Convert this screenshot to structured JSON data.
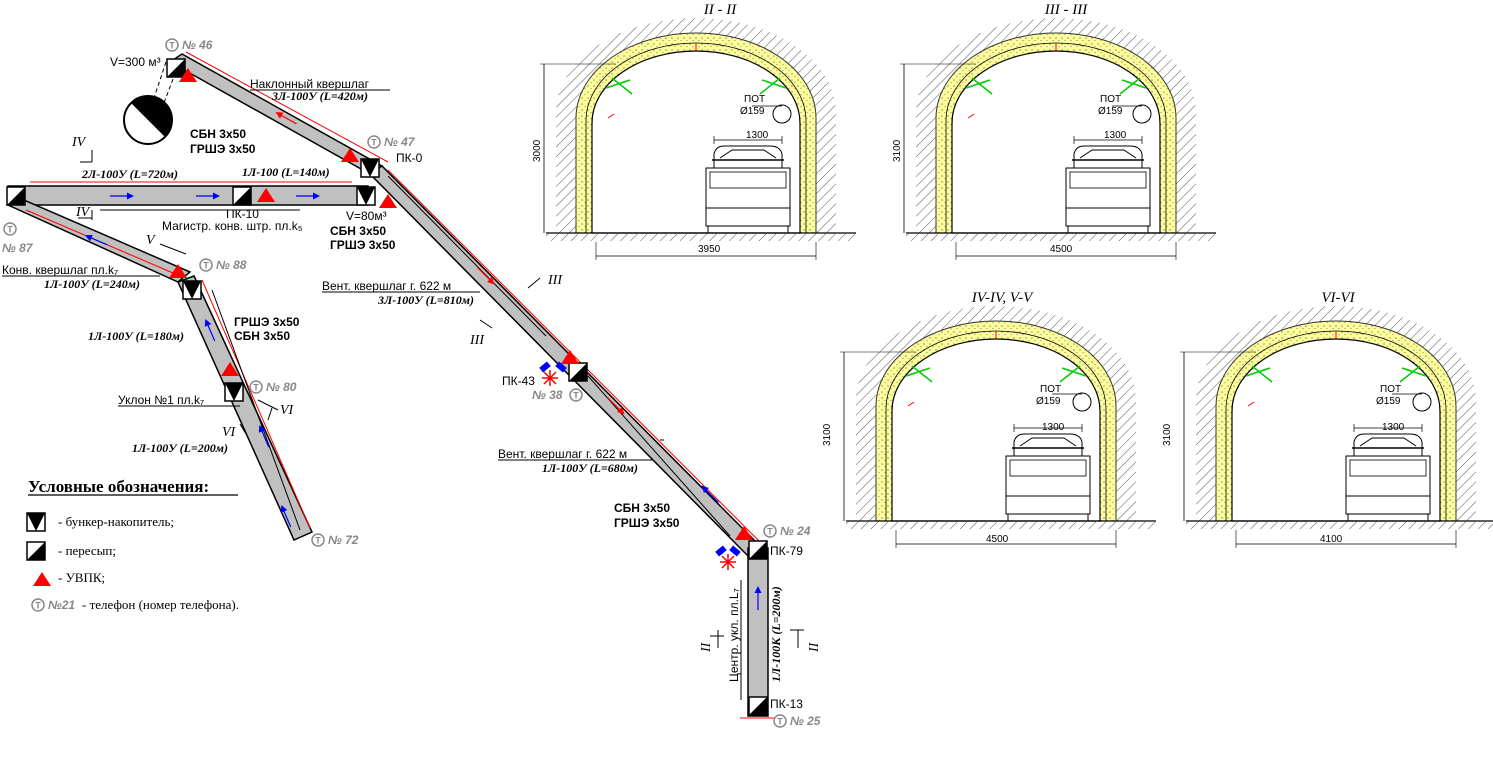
{
  "labels": {
    "v300": "V=300 м³",
    "naklon_title": "Наклонный квершлаг",
    "naklon_spec": "3Л-100У (L=420м)",
    "sbn_top": "СБН    3х50",
    "grshe_top": "ГРШЭ 3х50",
    "l2_720": "2Л-100У (L=720м)",
    "l1_140": "1Л-100 (L=140м)",
    "pk0": "ПК-0",
    "pk10": "ПК-10",
    "v80": "V=80м³",
    "magistr": "Магистр. конв. штр. пл.k₅",
    "sbn_mid": "СБН    3х50",
    "grshe_mid": "ГРШЭ 3х50",
    "konv_title": "Конв. квершлаг пл.k₇",
    "konv_spec": "1Л-100У (L=240м)",
    "vent1_title": "Вент. квершлаг г. 622 м",
    "vent1_spec": "3Л-100У (L=810м)",
    "grshe_left": "ГРШЭ 3х50",
    "sbn_left": "СБН    3х50",
    "l1_180": "1Л-100У (L=180м)",
    "uklon_title": "Уклон №1 пл.k₇",
    "uklon_spec": "1Л-100У (L=200м)",
    "pk43": "ПК-43",
    "vent2_title": "Вент. квершлаг г. 622 м",
    "vent2_spec": "1Л-100У (L=680м)",
    "sbn_bot": "СБН    3х50",
    "grshe_bot": "ГРШЭ 3х50",
    "pk79": "ПК-79",
    "pk13": "ПК-13",
    "centr_title": "Центр. укл. пл.L₇",
    "centr_spec": "1Л-100К (L=200м)"
  },
  "phones": {
    "t46": "№ 46",
    "t47": "№ 47",
    "t87": "№ 87",
    "t88": "№ 88",
    "t80": "№ 80",
    "t72": "№ 72",
    "t38": "№ 38",
    "t24": "№ 24",
    "t25": "№ 25"
  },
  "section_marks": {
    "iv": "IV",
    "v": "V",
    "vi": "VI",
    "iii": "III",
    "ii": "II"
  },
  "legend": {
    "title": "Условные обозначения:",
    "bunker": "- бункер-накопитель;",
    "peresyp": "- пересып;",
    "uvpk": "- УВПК;",
    "telephone_num": "№21",
    "telephone": "- телефон (номер телефона)."
  },
  "sections": [
    {
      "title": "II - II",
      "height": "3000",
      "width": "3950",
      "conveyor": "1300",
      "pot": "ПОТ",
      "pipe": "Ø159"
    },
    {
      "title": "III - III",
      "height": "3100",
      "width": "4500",
      "conveyor": "1300",
      "pot": "ПОТ",
      "pipe": "Ø159"
    },
    {
      "title": "IV-IV, V-V",
      "height": "3100",
      "width": "4500",
      "conveyor": "1300",
      "pot": "ПОТ",
      "pipe": "Ø159"
    },
    {
      "title": "VI-VI",
      "height": "3100",
      "width": "4100",
      "conveyor": "1300",
      "pot": "ПОТ",
      "pipe": "Ø159"
    }
  ],
  "colors": {
    "belt": "#c0c0c0",
    "uvpk": "#ff0000",
    "arrow_blue": "#0000ff",
    "arrow_red": "#ff0000",
    "lining": "#ffff99",
    "anchor": "#00cc00"
  }
}
